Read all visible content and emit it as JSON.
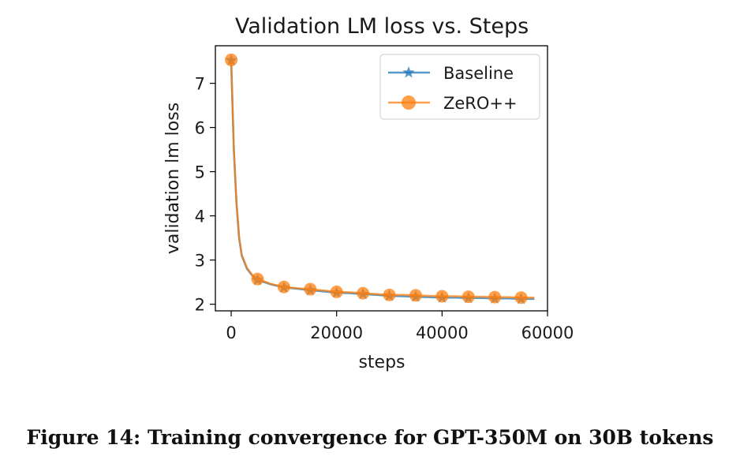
{
  "caption": "Figure 14: Training convergence for GPT-350M on 30B tokens",
  "chart_data": {
    "type": "line",
    "title": "Validation LM loss vs. Steps",
    "xlabel": "steps",
    "ylabel": "validation lm loss",
    "xlim": [
      -3000,
      60000
    ],
    "ylim": [
      1.85,
      7.85
    ],
    "xticks": [
      0,
      20000,
      40000,
      60000
    ],
    "yticks": [
      2,
      3,
      4,
      5,
      6,
      7
    ],
    "grid": false,
    "legend": "top-right",
    "series": [
      {
        "name": "Baseline",
        "color": "#1f77b4",
        "marker": "star",
        "x": [
          0,
          500,
          1000,
          1500,
          2000,
          3000,
          4000,
          5000,
          7500,
          10000,
          12500,
          15000,
          17500,
          20000,
          22500,
          25000,
          27500,
          30000,
          32500,
          35000,
          37500,
          40000,
          42500,
          45000,
          47500,
          50000,
          52500,
          55000,
          57500
        ],
        "values": [
          7.52,
          5.5,
          4.3,
          3.5,
          3.1,
          2.8,
          2.65,
          2.55,
          2.45,
          2.38,
          2.35,
          2.32,
          2.29,
          2.26,
          2.25,
          2.23,
          2.21,
          2.19,
          2.18,
          2.17,
          2.16,
          2.15,
          2.15,
          2.14,
          2.14,
          2.13,
          2.13,
          2.12,
          2.12
        ],
        "marker_x": [
          0,
          5000,
          10000,
          15000,
          20000,
          25000,
          30000,
          35000,
          40000,
          45000,
          50000,
          55000
        ],
        "marker_y": [
          7.52,
          2.55,
          2.38,
          2.32,
          2.26,
          2.23,
          2.19,
          2.17,
          2.15,
          2.14,
          2.13,
          2.12
        ]
      },
      {
        "name": "ZeRO++",
        "color": "#ff7f0e",
        "marker": "circle",
        "x": [
          0,
          500,
          1000,
          1500,
          2000,
          3000,
          4000,
          5000,
          7500,
          10000,
          12500,
          15000,
          17500,
          20000,
          22500,
          25000,
          27500,
          30000,
          32500,
          35000,
          37500,
          40000,
          42500,
          45000,
          47500,
          50000,
          52500,
          55000,
          57500
        ],
        "values": [
          7.53,
          5.52,
          4.32,
          3.52,
          3.12,
          2.82,
          2.66,
          2.57,
          2.46,
          2.39,
          2.36,
          2.34,
          2.31,
          2.28,
          2.27,
          2.25,
          2.23,
          2.21,
          2.21,
          2.2,
          2.19,
          2.18,
          2.18,
          2.17,
          2.17,
          2.16,
          2.16,
          2.15,
          2.15
        ],
        "marker_x": [
          0,
          5000,
          10000,
          15000,
          20000,
          25000,
          30000,
          35000,
          40000,
          45000,
          50000,
          55000
        ],
        "marker_y": [
          7.53,
          2.57,
          2.39,
          2.34,
          2.28,
          2.25,
          2.21,
          2.2,
          2.18,
          2.17,
          2.16,
          2.15
        ]
      }
    ]
  }
}
